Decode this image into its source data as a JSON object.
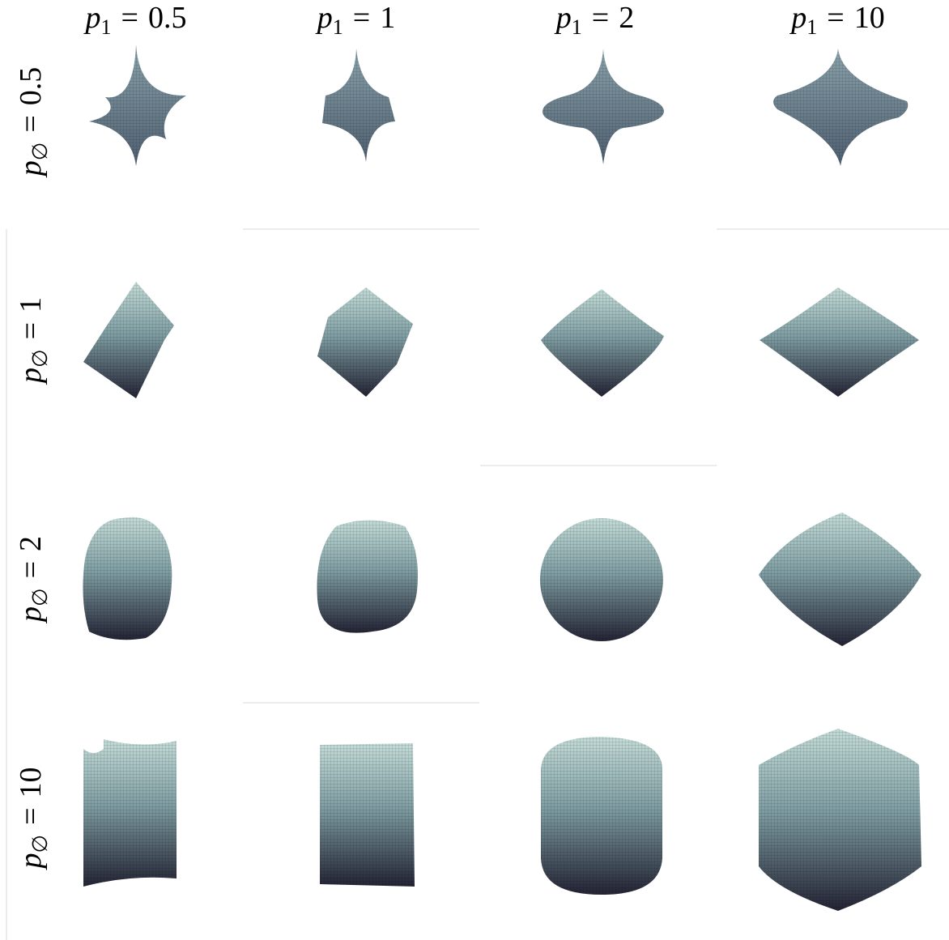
{
  "figure": {
    "column_labels": [
      {
        "symbol": "p",
        "subscript": "1",
        "relation": "=",
        "value": "0.5"
      },
      {
        "symbol": "p",
        "subscript": "1",
        "relation": "=",
        "value": "1"
      },
      {
        "symbol": "p",
        "subscript": "1",
        "relation": "=",
        "value": "2"
      },
      {
        "symbol": "p",
        "subscript": "1",
        "relation": "=",
        "value": "10"
      }
    ],
    "row_labels": [
      {
        "symbol": "p",
        "subscript": "∅",
        "relation": "=",
        "value": "0.5"
      },
      {
        "symbol": "p",
        "subscript": "∅",
        "relation": "=",
        "value": "1"
      },
      {
        "symbol": "p",
        "subscript": "∅",
        "relation": "=",
        "value": "2"
      },
      {
        "symbol": "p",
        "subscript": "∅",
        "relation": "=",
        "value": "10"
      }
    ]
  }
}
